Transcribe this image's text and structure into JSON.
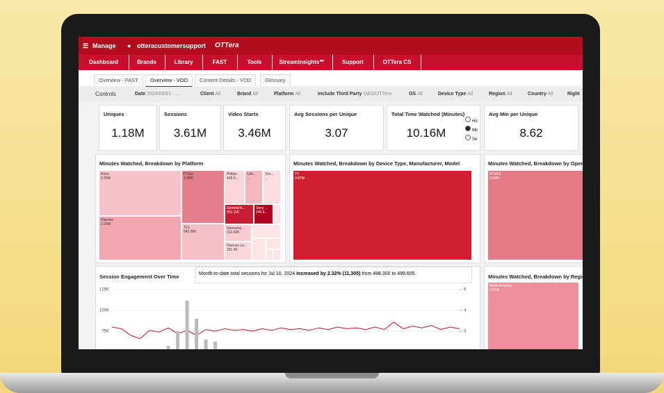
{
  "header": {
    "manage": "Manage",
    "user": "otteracustomersupport",
    "logo": "OTTera"
  },
  "menu": [
    "Dashboard",
    "Brands",
    "Library",
    "FAST",
    "Tools",
    "StreamInsights℠",
    "Support",
    "OTTera CS"
  ],
  "tabs": [
    "Overview - FAST",
    "Overview - VOD",
    "Content Details - VOD",
    "Glossary"
  ],
  "controls": {
    "title": "Controls",
    "filters": [
      {
        "label": "Date",
        "value": "2024/05/01 - ..."
      },
      {
        "label": "Client",
        "value": "All"
      },
      {
        "label": "Brand",
        "value": "All"
      },
      {
        "label": "Platform",
        "value": "All"
      },
      {
        "label": "Include Third Party",
        "value": "O&O/OTTera"
      },
      {
        "label": "OS",
        "value": "All"
      },
      {
        "label": "Device Type",
        "value": "All"
      },
      {
        "label": "Region",
        "value": "All"
      },
      {
        "label": "Country",
        "value": "All"
      },
      {
        "label": "Right",
        "value": ""
      }
    ]
  },
  "kpis": [
    {
      "label": "Uniques",
      "value": "1.18M"
    },
    {
      "label": "Sessions",
      "value": "3.61M"
    },
    {
      "label": "Video Starts",
      "value": "3.46M"
    },
    {
      "label": "Avg Sessions per Unique",
      "value": "3.07"
    },
    {
      "label": "Total Time Watched (Minutes)",
      "value": "10.16M"
    },
    {
      "label": "Avg Min per Unique",
      "value": "8.62"
    }
  ],
  "radio": [
    "Ho",
    "Mir",
    "Se"
  ],
  "treemap": {
    "title": "Minutes Watched, Breakdown by Platform",
    "cells": [
      {
        "label": "Roku",
        "value": "2.35M"
      },
      {
        "label": "Hisense",
        "value": "2.25M"
      },
      {
        "label": "H Star",
        "value": "1.49M"
      },
      {
        "label": "TCL",
        "value": "542.95K"
      },
      {
        "label": "Philips",
        "value": "428.6..."
      },
      {
        "label": "Unk...",
        "value": "..."
      },
      {
        "label": "Vizi...",
        "value": "..."
      },
      {
        "label": "General A...",
        "value": "551.11K"
      },
      {
        "label": "Sony ...",
        "value": "245.6..."
      },
      {
        "label": "Samsung ...",
        "value": "310.69K"
      },
      {
        "label": "Hisense Le...",
        "value": "291.9K"
      }
    ]
  },
  "device": {
    "title": "Minutes Watched, Breakdown by Device Type, Manufacturer, Model",
    "cell": {
      "label": "TV",
      "value": "9.87M"
    }
  },
  "operator": {
    "title": "Minutes Watched, Breakdown by Operat",
    "cell": {
      "label": "HTML5",
      "value": "5.99M"
    }
  },
  "region": {
    "title": "Minutes Watched, Breakdown by Region",
    "cell": {
      "label": "North America",
      "value": "3.51M"
    }
  },
  "engagement": {
    "title": "Session Engagement Over Time",
    "note": {
      "pre": "Month-to-date total sessions for Jul 10, 2024",
      "bold": "increased by 2.32% (11,305)",
      "post": "from 488,300 to 499,605."
    },
    "ylim": [
      50000,
      125000
    ],
    "yticks": [
      {
        "value": 125000,
        "label": "125K"
      },
      {
        "value": 100000,
        "label": "100K"
      },
      {
        "value": 75000,
        "label": "75K"
      }
    ],
    "y2lim": [
      2,
      5
    ],
    "y2ticks": [
      5,
      4,
      3
    ],
    "series": [
      {
        "name": "Sessions",
        "color": "#c8102e",
        "values": [
          80000,
          78000,
          70000,
          66000,
          76000,
          74000,
          79000,
          72000,
          76000,
          70000,
          77000,
          75000,
          78000,
          76000,
          77000,
          75000,
          78000,
          76000,
          79000,
          77000,
          78000,
          76000,
          79000,
          77000,
          80000,
          78000,
          79000,
          77000,
          80000,
          77000,
          86000,
          78000,
          81000,
          79000,
          82000,
          77000,
          80000,
          78000
        ]
      },
      {
        "name": "Sessions per Unique",
        "color": "#bbbbbb",
        "axis": "y2",
        "values": [
          null,
          null,
          null,
          null,
          null,
          null,
          2.3,
          3.0,
          4.47,
          3.6,
          2.6,
          2.5,
          null,
          null,
          null,
          null,
          null,
          null,
          null,
          null,
          null,
          null,
          null,
          null,
          null,
          null,
          null,
          null,
          null,
          null,
          null,
          null,
          null,
          null,
          null,
          null,
          null,
          null
        ]
      }
    ]
  }
}
